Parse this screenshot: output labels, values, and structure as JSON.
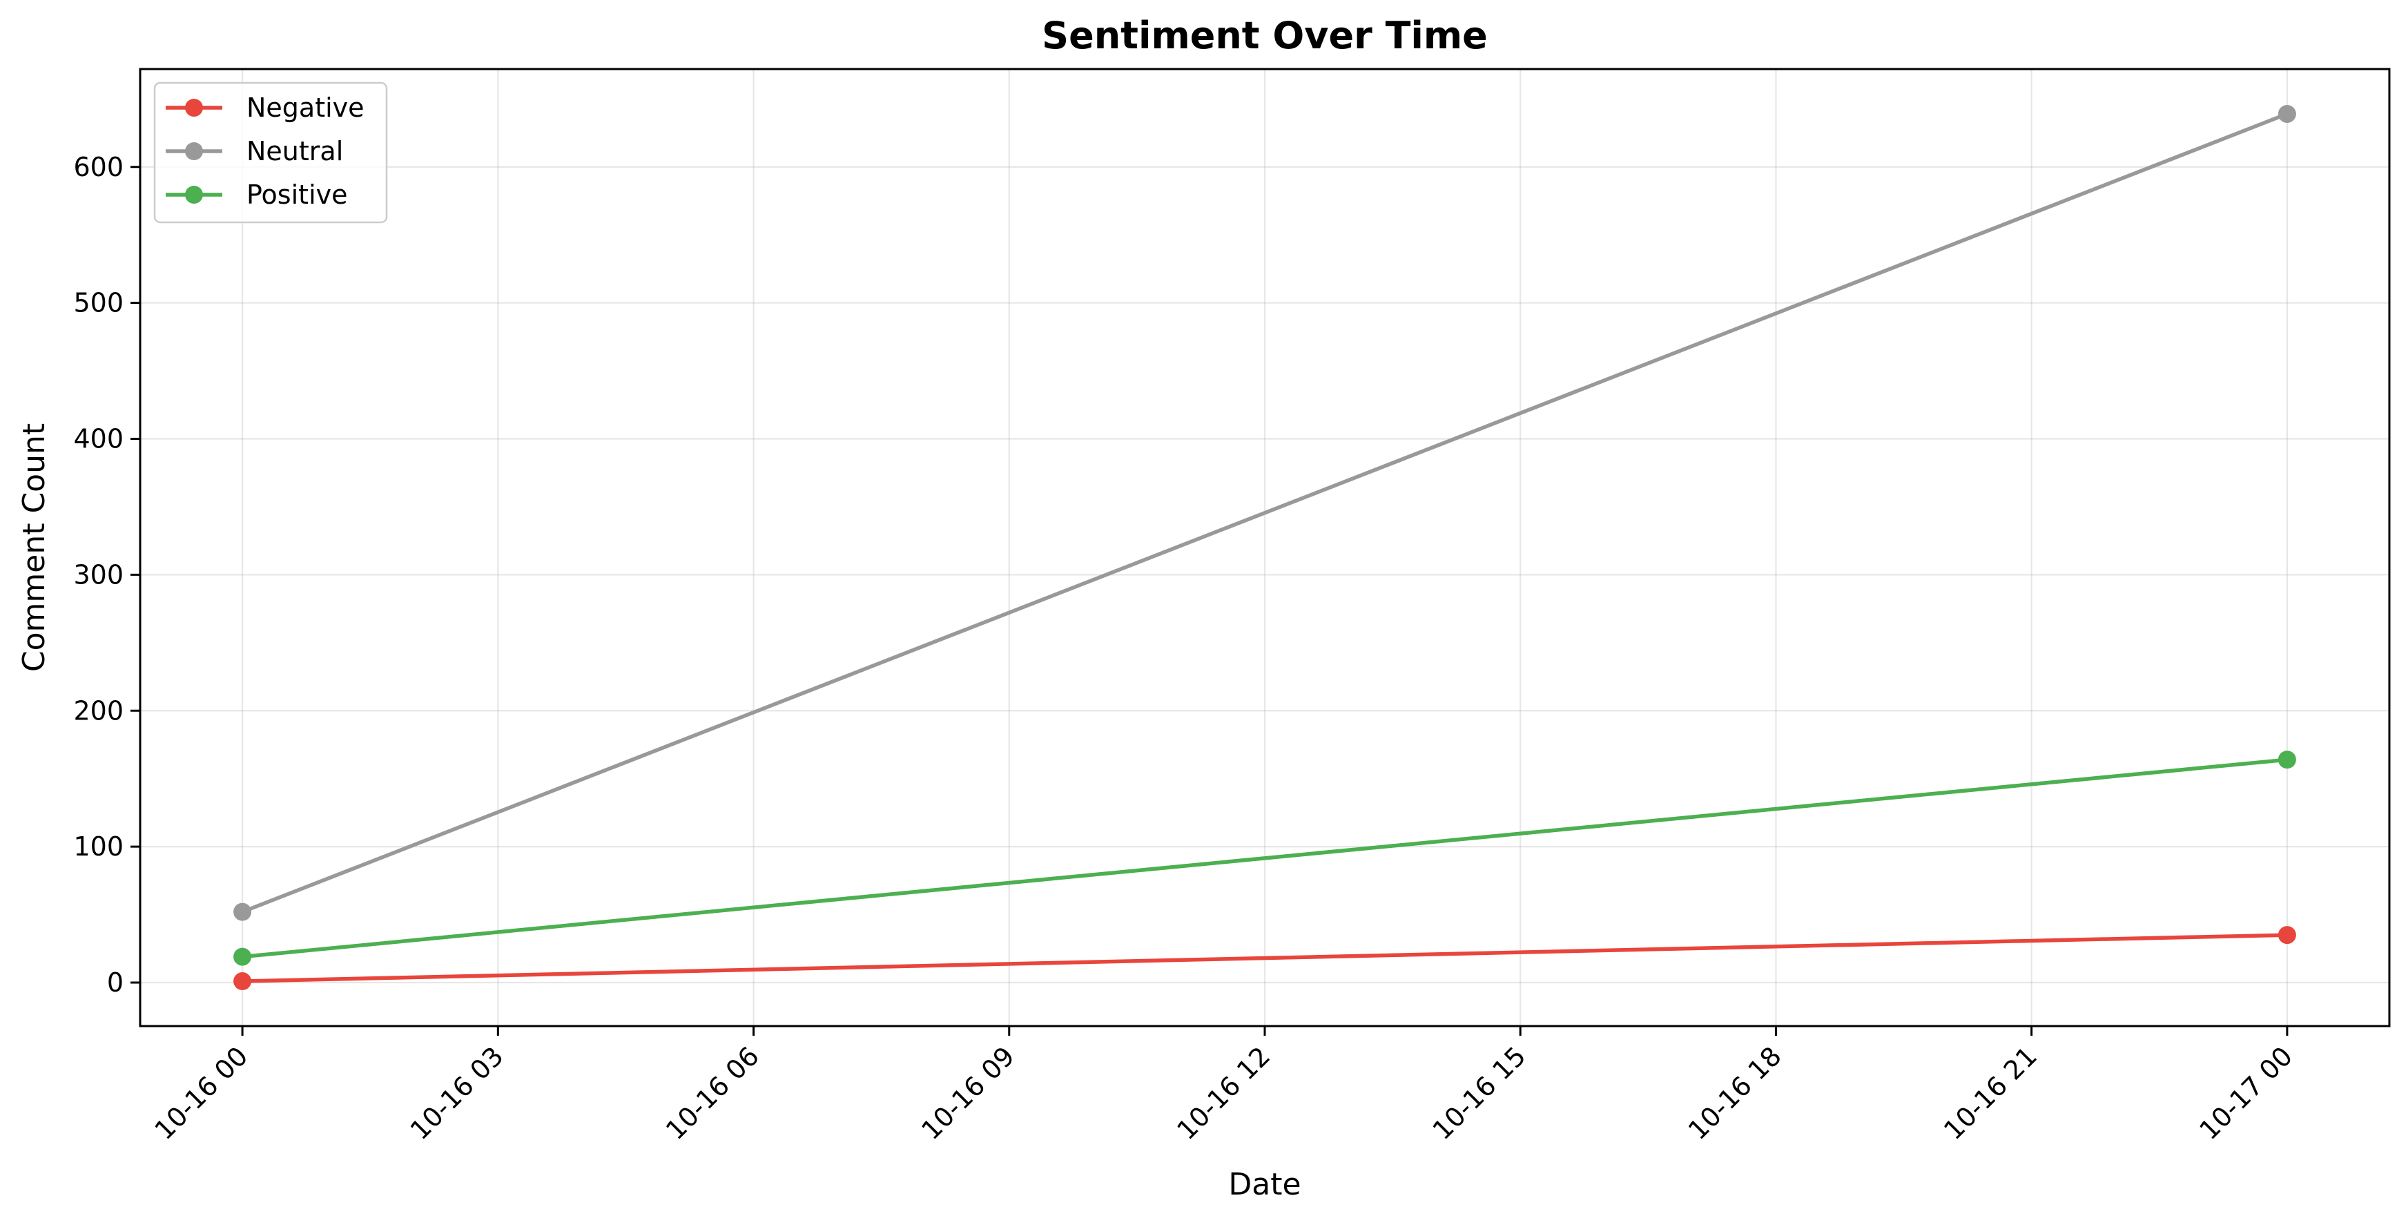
{
  "chart_data": {
    "type": "line",
    "title": "Sentiment Over Time",
    "xlabel": "Date",
    "ylabel": "Comment Count",
    "x": [
      "2024-10-16T00:00",
      "2024-10-17T00:00"
    ],
    "x_tick_labels": [
      "10-16 00",
      "10-16 03",
      "10-16 06",
      "10-16 09",
      "10-16 12",
      "10-16 15",
      "10-16 18",
      "10-16 21",
      "10-17 00"
    ],
    "y_ticks": [
      0,
      100,
      200,
      300,
      400,
      500,
      600
    ],
    "y_tick_labels": [
      "0",
      "100",
      "200",
      "300",
      "400",
      "500",
      "600"
    ],
    "ylim": [
      -32,
      672
    ],
    "xlim": [
      "2024-10-15T22:48",
      "2024-10-17T01:12"
    ],
    "grid": true,
    "legend_position": "top-left",
    "series": [
      {
        "name": "Negative",
        "color": "#e8453c",
        "values": [
          1,
          35
        ]
      },
      {
        "name": "Neutral",
        "color": "#999999",
        "values": [
          52,
          639
        ]
      },
      {
        "name": "Positive",
        "color": "#4caf50",
        "values": [
          19,
          164
        ]
      }
    ]
  }
}
